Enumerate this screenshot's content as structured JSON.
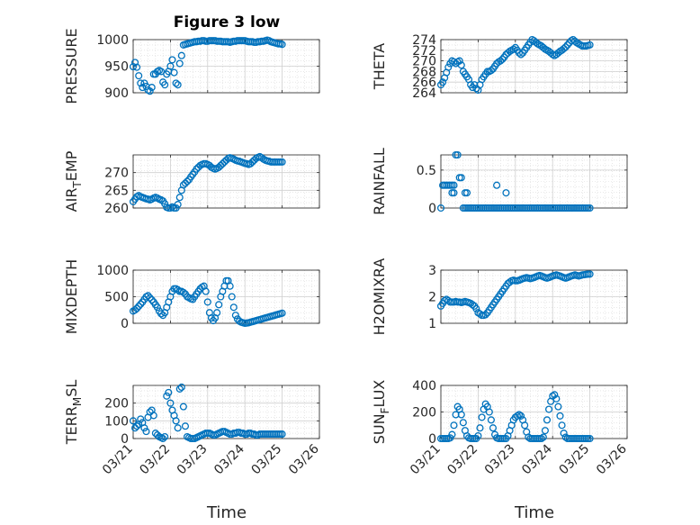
{
  "figure": {
    "title": "Figure 3 low",
    "xlabel": "Time",
    "x_ticks": [
      "03/21",
      "03/22",
      "03/23",
      "03/24",
      "03/25",
      "03/26"
    ],
    "marker_color": "#0072BD"
  },
  "chart_data": [
    {
      "type": "scatter",
      "ylabel": "PRESSURE",
      "ylim": [
        900,
        1000
      ],
      "yticks": [
        900,
        950,
        1000
      ],
      "xlim": [
        0,
        5
      ],
      "grid": true,
      "x": [
        0.0,
        0.05,
        0.1,
        0.15,
        0.2,
        0.25,
        0.3,
        0.35,
        0.4,
        0.45,
        0.5,
        0.55,
        0.6,
        0.65,
        0.7,
        0.75,
        0.8,
        0.85,
        0.9,
        0.95,
        1.0,
        1.05,
        1.1,
        1.15,
        1.2,
        1.25,
        1.3,
        1.35,
        1.4,
        1.45,
        1.5,
        1.55,
        1.6,
        1.65,
        1.7,
        1.75,
        1.8,
        1.85,
        1.9,
        1.95,
        2.0,
        2.05,
        2.1,
        2.15,
        2.2,
        2.25,
        2.3,
        2.35,
        2.4,
        2.45,
        2.5,
        2.55,
        2.6,
        2.65,
        2.7,
        2.75,
        2.8,
        2.85,
        2.9,
        2.95,
        3.0,
        3.05,
        3.1,
        3.15,
        3.2,
        3.25,
        3.3,
        3.35,
        3.4,
        3.45,
        3.5,
        3.55,
        3.6,
        3.65,
        3.7,
        3.75,
        3.8,
        3.85,
        3.9,
        3.95,
        4.0
      ],
      "y": [
        949,
        957,
        948,
        932,
        918,
        910,
        918,
        912,
        905,
        903,
        910,
        935,
        935,
        940,
        942,
        940,
        920,
        915,
        935,
        940,
        950,
        962,
        938,
        918,
        915,
        955,
        970,
        990,
        991,
        992,
        993,
        994,
        995,
        996,
        996,
        997,
        997,
        998,
        998,
        997,
        997,
        998,
        998,
        998,
        998,
        997,
        997,
        997,
        996,
        996,
        996,
        996,
        995,
        996,
        997,
        997,
        998,
        998,
        998,
        998,
        998,
        997,
        996,
        996,
        996,
        995,
        995,
        996,
        996,
        997,
        997,
        998,
        999,
        998,
        996,
        995,
        994,
        993,
        992,
        992,
        991
      ]
    },
    {
      "type": "scatter",
      "ylabel": "THETA",
      "ylim": [
        264,
        274
      ],
      "yticks": [
        264,
        266,
        268,
        270,
        272,
        274
      ],
      "xlim": [
        0,
        5
      ],
      "grid": true,
      "x": [
        0.0,
        0.05,
        0.1,
        0.15,
        0.2,
        0.25,
        0.3,
        0.35,
        0.4,
        0.45,
        0.5,
        0.55,
        0.6,
        0.65,
        0.7,
        0.75,
        0.8,
        0.85,
        0.9,
        0.95,
        1.0,
        1.05,
        1.1,
        1.15,
        1.2,
        1.25,
        1.3,
        1.35,
        1.4,
        1.45,
        1.5,
        1.55,
        1.6,
        1.65,
        1.7,
        1.75,
        1.8,
        1.85,
        1.9,
        1.95,
        2.0,
        2.05,
        2.1,
        2.15,
        2.2,
        2.25,
        2.3,
        2.35,
        2.4,
        2.45,
        2.5,
        2.55,
        2.6,
        2.65,
        2.7,
        2.75,
        2.8,
        2.85,
        2.9,
        2.95,
        3.0,
        3.05,
        3.1,
        3.15,
        3.2,
        3.25,
        3.3,
        3.35,
        3.4,
        3.45,
        3.5,
        3.55,
        3.6,
        3.65,
        3.7,
        3.75,
        3.8,
        3.85,
        3.9,
        3.95,
        4.0
      ],
      "y": [
        265.5,
        266.0,
        266.8,
        267.8,
        268.8,
        269.5,
        270.0,
        269.8,
        269.5,
        269.8,
        270.0,
        269.2,
        268.0,
        267.5,
        267.0,
        266.5,
        265.5,
        265.0,
        265.5,
        264.8,
        264.5,
        265.5,
        266.5,
        267.0,
        267.5,
        268.0,
        268.0,
        268.2,
        268.5,
        269.0,
        269.5,
        269.8,
        270.0,
        270.3,
        270.7,
        271.2,
        271.5,
        271.8,
        272.0,
        272.2,
        272.5,
        272.0,
        271.5,
        271.2,
        271.5,
        272.0,
        272.5,
        273.0,
        273.5,
        274.0,
        273.8,
        273.5,
        273.2,
        273.0,
        272.8,
        272.5,
        272.2,
        272.0,
        271.8,
        271.5,
        271.2,
        271.0,
        271.2,
        271.5,
        271.8,
        272.0,
        272.3,
        272.6,
        273.0,
        273.4,
        273.8,
        274.0,
        273.7,
        273.4,
        273.2,
        273.0,
        272.8,
        272.8,
        272.8,
        272.9,
        273.0
      ]
    },
    {
      "type": "scatter",
      "ylabel": "AIR_TEMP",
      "ylim": [
        260,
        275
      ],
      "yticks": [
        260,
        265,
        270
      ],
      "xlim": [
        0,
        5
      ],
      "grid": true,
      "x": [
        0.0,
        0.05,
        0.1,
        0.15,
        0.2,
        0.25,
        0.3,
        0.35,
        0.4,
        0.45,
        0.5,
        0.55,
        0.6,
        0.65,
        0.7,
        0.75,
        0.8,
        0.85,
        0.9,
        0.95,
        1.0,
        1.05,
        1.1,
        1.15,
        1.2,
        1.25,
        1.3,
        1.35,
        1.4,
        1.45,
        1.5,
        1.55,
        1.6,
        1.65,
        1.7,
        1.75,
        1.8,
        1.85,
        1.9,
        1.95,
        2.0,
        2.05,
        2.1,
        2.15,
        2.2,
        2.25,
        2.3,
        2.35,
        2.4,
        2.45,
        2.5,
        2.55,
        2.6,
        2.65,
        2.7,
        2.75,
        2.8,
        2.85,
        2.9,
        2.95,
        3.0,
        3.05,
        3.1,
        3.15,
        3.2,
        3.25,
        3.3,
        3.35,
        3.4,
        3.45,
        3.5,
        3.55,
        3.6,
        3.65,
        3.7,
        3.75,
        3.8,
        3.85,
        3.9,
        3.95,
        4.0
      ],
      "y": [
        261.8,
        262.5,
        263.2,
        263.5,
        263.2,
        263.0,
        262.8,
        262.6,
        262.5,
        262.3,
        262.5,
        262.8,
        263.0,
        262.8,
        262.5,
        262.3,
        262.0,
        261.2,
        260.2,
        260.0,
        260.0,
        260.3,
        260.0,
        260.0,
        261.0,
        263.0,
        265.0,
        266.5,
        267.0,
        267.5,
        268.0,
        268.8,
        269.5,
        270.2,
        271.0,
        271.5,
        272.0,
        272.3,
        272.5,
        272.5,
        272.3,
        272.0,
        271.5,
        271.2,
        271.0,
        271.2,
        271.5,
        272.0,
        272.5,
        273.0,
        273.5,
        274.0,
        274.2,
        274.0,
        273.8,
        273.5,
        273.3,
        273.2,
        273.0,
        272.8,
        272.6,
        272.5,
        272.3,
        272.5,
        273.0,
        273.5,
        274.0,
        274.3,
        274.5,
        274.2,
        273.8,
        273.5,
        273.3,
        273.2,
        273.0,
        273.0,
        273.0,
        273.0,
        273.0,
        273.0,
        273.0
      ]
    },
    {
      "type": "scatter",
      "ylabel": "RAINFALL",
      "ylim": [
        0,
        0.7
      ],
      "yticks": [
        0,
        0.5
      ],
      "xlim": [
        0,
        5
      ],
      "grid": true,
      "x": [
        0.0,
        0.05,
        0.1,
        0.15,
        0.2,
        0.25,
        0.3,
        0.35,
        0.4,
        0.45,
        0.5,
        0.55,
        0.6,
        0.65,
        0.7,
        0.75,
        0.8,
        0.85,
        0.9,
        0.95,
        1.0,
        1.05,
        1.1,
        1.15,
        1.2,
        1.25,
        1.3,
        1.35,
        1.4,
        1.45,
        1.5,
        1.55,
        1.6,
        1.65,
        1.7,
        1.75,
        1.8,
        1.85,
        1.9,
        1.95,
        2.0,
        2.05,
        2.1,
        2.15,
        2.2,
        2.25,
        2.3,
        2.35,
        2.4,
        2.45,
        2.5,
        2.55,
        2.6,
        2.65,
        2.7,
        2.75,
        2.8,
        2.85,
        2.9,
        2.95,
        3.0,
        3.05,
        3.1,
        3.15,
        3.2,
        3.25,
        3.3,
        3.35,
        3.4,
        3.45,
        3.5,
        3.55,
        3.6,
        3.65,
        3.7,
        3.75,
        3.8,
        3.85,
        3.9,
        3.95,
        4.0,
        0.3,
        0.35,
        0.65,
        0.7,
        1.5,
        1.75
      ],
      "y": [
        0,
        0.3,
        0.3,
        0.3,
        0.3,
        0.3,
        0.3,
        0.3,
        0.7,
        0.7,
        0.4,
        0.4,
        0,
        0,
        0,
        0,
        0,
        0,
        0,
        0,
        0,
        0,
        0,
        0,
        0,
        0,
        0,
        0,
        0,
        0,
        0,
        0,
        0,
        0,
        0,
        0,
        0,
        0,
        0,
        0,
        0,
        0,
        0,
        0,
        0,
        0,
        0,
        0,
        0,
        0,
        0,
        0,
        0,
        0,
        0,
        0,
        0,
        0,
        0,
        0,
        0,
        0,
        0,
        0,
        0,
        0,
        0,
        0,
        0,
        0,
        0,
        0,
        0,
        0,
        0,
        0,
        0,
        0,
        0,
        0,
        0,
        0.2,
        0.2,
        0.2,
        0.2,
        0.3,
        0.2
      ]
    },
    {
      "type": "scatter",
      "ylabel": "MIXDEPTH",
      "ylim": [
        0,
        1000
      ],
      "yticks": [
        0,
        500,
        1000
      ],
      "xlim": [
        0,
        5
      ],
      "grid": true,
      "x": [
        0.0,
        0.05,
        0.1,
        0.15,
        0.2,
        0.25,
        0.3,
        0.35,
        0.4,
        0.45,
        0.5,
        0.55,
        0.6,
        0.65,
        0.7,
        0.75,
        0.8,
        0.85,
        0.9,
        0.95,
        1.0,
        1.05,
        1.1,
        1.15,
        1.2,
        1.25,
        1.3,
        1.35,
        1.4,
        1.45,
        1.5,
        1.55,
        1.6,
        1.65,
        1.7,
        1.75,
        1.8,
        1.85,
        1.9,
        1.95,
        2.0,
        2.05,
        2.1,
        2.15,
        2.2,
        2.25,
        2.3,
        2.35,
        2.4,
        2.45,
        2.5,
        2.55,
        2.6,
        2.65,
        2.7,
        2.75,
        2.8,
        2.85,
        2.9,
        2.95,
        3.0,
        3.05,
        3.1,
        3.15,
        3.2,
        3.25,
        3.3,
        3.35,
        3.4,
        3.45,
        3.5,
        3.55,
        3.6,
        3.65,
        3.7,
        3.75,
        3.8,
        3.85,
        3.9,
        3.95,
        4.0
      ],
      "y": [
        230,
        250,
        280,
        320,
        360,
        400,
        450,
        500,
        520,
        480,
        440,
        400,
        350,
        300,
        230,
        180,
        150,
        200,
        300,
        400,
        500,
        600,
        650,
        650,
        630,
        600,
        600,
        580,
        550,
        500,
        480,
        460,
        450,
        500,
        550,
        600,
        650,
        680,
        700,
        600,
        400,
        200,
        100,
        50,
        100,
        200,
        350,
        500,
        600,
        700,
        800,
        800,
        700,
        500,
        300,
        150,
        80,
        40,
        20,
        10,
        0,
        5,
        10,
        20,
        30,
        40,
        50,
        60,
        70,
        80,
        90,
        100,
        110,
        120,
        130,
        140,
        150,
        160,
        170,
        180,
        190
      ]
    },
    {
      "type": "scatter",
      "ylabel": "H2OMIXRA",
      "ylim": [
        1,
        3
      ],
      "yticks": [
        1,
        2,
        3
      ],
      "xlim": [
        0,
        5
      ],
      "grid": true,
      "x": [
        0.0,
        0.05,
        0.1,
        0.15,
        0.2,
        0.25,
        0.3,
        0.35,
        0.4,
        0.45,
        0.5,
        0.55,
        0.6,
        0.65,
        0.7,
        0.75,
        0.8,
        0.85,
        0.9,
        0.95,
        1.0,
        1.05,
        1.1,
        1.15,
        1.2,
        1.25,
        1.3,
        1.35,
        1.4,
        1.45,
        1.5,
        1.55,
        1.6,
        1.65,
        1.7,
        1.75,
        1.8,
        1.85,
        1.9,
        1.95,
        2.0,
        2.05,
        2.1,
        2.15,
        2.2,
        2.25,
        2.3,
        2.35,
        2.4,
        2.45,
        2.5,
        2.55,
        2.6,
        2.65,
        2.7,
        2.75,
        2.8,
        2.85,
        2.9,
        2.95,
        3.0,
        3.05,
        3.1,
        3.15,
        3.2,
        3.25,
        3.3,
        3.35,
        3.4,
        3.45,
        3.5,
        3.55,
        3.6,
        3.65,
        3.7,
        3.75,
        3.8,
        3.85,
        3.9,
        3.95,
        4.0
      ],
      "y": [
        1.65,
        1.75,
        1.85,
        1.9,
        1.85,
        1.8,
        1.8,
        1.8,
        1.82,
        1.8,
        1.8,
        1.78,
        1.8,
        1.82,
        1.8,
        1.78,
        1.75,
        1.7,
        1.65,
        1.55,
        1.4,
        1.35,
        1.3,
        1.3,
        1.32,
        1.4,
        1.5,
        1.6,
        1.7,
        1.8,
        1.9,
        2.0,
        2.1,
        2.2,
        2.3,
        2.4,
        2.5,
        2.55,
        2.6,
        2.62,
        2.6,
        2.6,
        2.62,
        2.65,
        2.68,
        2.7,
        2.72,
        2.7,
        2.68,
        2.7,
        2.72,
        2.75,
        2.78,
        2.8,
        2.78,
        2.75,
        2.72,
        2.7,
        2.72,
        2.75,
        2.78,
        2.8,
        2.82,
        2.8,
        2.78,
        2.75,
        2.72,
        2.7,
        2.72,
        2.75,
        2.78,
        2.8,
        2.82,
        2.8,
        2.78,
        2.8,
        2.82,
        2.83,
        2.84,
        2.85,
        2.85
      ]
    },
    {
      "type": "scatter",
      "ylabel": "TERR_MSL",
      "ylim": [
        0,
        300
      ],
      "yticks": [
        0,
        100,
        200
      ],
      "xlim": [
        0,
        5
      ],
      "grid": true,
      "x": [
        0.0,
        0.05,
        0.1,
        0.15,
        0.2,
        0.25,
        0.3,
        0.35,
        0.4,
        0.45,
        0.5,
        0.55,
        0.6,
        0.65,
        0.7,
        0.75,
        0.8,
        0.85,
        0.9,
        0.95,
        1.0,
        1.05,
        1.1,
        1.15,
        1.2,
        1.25,
        1.3,
        1.35,
        1.4,
        1.45,
        1.5,
        1.55,
        1.6,
        1.65,
        1.7,
        1.75,
        1.8,
        1.85,
        1.9,
        1.95,
        2.0,
        2.05,
        2.1,
        2.15,
        2.2,
        2.25,
        2.3,
        2.35,
        2.4,
        2.45,
        2.5,
        2.55,
        2.6,
        2.65,
        2.7,
        2.75,
        2.8,
        2.85,
        2.9,
        2.95,
        3.0,
        3.05,
        3.1,
        3.15,
        3.2,
        3.25,
        3.3,
        3.35,
        3.4,
        3.45,
        3.5,
        3.55,
        3.6,
        3.65,
        3.7,
        3.75,
        3.8,
        3.85,
        3.9,
        3.95,
        4.0
      ],
      "y": [
        100,
        60,
        70,
        80,
        110,
        90,
        60,
        40,
        120,
        150,
        160,
        130,
        30,
        20,
        10,
        5,
        0,
        10,
        240,
        260,
        200,
        160,
        130,
        100,
        60,
        280,
        290,
        180,
        70,
        10,
        5,
        0,
        0,
        0,
        5,
        10,
        15,
        20,
        25,
        30,
        30,
        30,
        25,
        20,
        20,
        25,
        30,
        35,
        40,
        40,
        35,
        30,
        25,
        25,
        30,
        30,
        35,
        35,
        30,
        30,
        25,
        25,
        30,
        30,
        25,
        25,
        20,
        20,
        25,
        25,
        25,
        25,
        25,
        25,
        25,
        25,
        25,
        25,
        25,
        25,
        25
      ]
    },
    {
      "type": "scatter",
      "ylabel": "SUN_FLUX",
      "ylim": [
        0,
        400
      ],
      "yticks": [
        0,
        200,
        400
      ],
      "xlim": [
        0,
        5
      ],
      "grid": true,
      "x": [
        0.0,
        0.05,
        0.1,
        0.15,
        0.2,
        0.25,
        0.3,
        0.35,
        0.4,
        0.45,
        0.5,
        0.55,
        0.6,
        0.65,
        0.7,
        0.75,
        0.8,
        0.85,
        0.9,
        0.95,
        1.0,
        1.05,
        1.1,
        1.15,
        1.2,
        1.25,
        1.3,
        1.35,
        1.4,
        1.45,
        1.5,
        1.55,
        1.6,
        1.65,
        1.7,
        1.75,
        1.8,
        1.85,
        1.9,
        1.95,
        2.0,
        2.05,
        2.1,
        2.15,
        2.2,
        2.25,
        2.3,
        2.35,
        2.4,
        2.45,
        2.5,
        2.55,
        2.6,
        2.65,
        2.7,
        2.75,
        2.8,
        2.85,
        2.9,
        2.95,
        3.0,
        3.05,
        3.1,
        3.15,
        3.2,
        3.25,
        3.3,
        3.35,
        3.4,
        3.45,
        3.5,
        3.55,
        3.6,
        3.65,
        3.7,
        3.75,
        3.8,
        3.85,
        3.9,
        3.95,
        4.0
      ],
      "y": [
        0,
        0,
        0,
        0,
        0,
        5,
        30,
        100,
        180,
        240,
        220,
        180,
        120,
        60,
        20,
        5,
        0,
        0,
        0,
        0,
        20,
        80,
        160,
        220,
        260,
        240,
        200,
        140,
        80,
        30,
        5,
        0,
        0,
        0,
        0,
        0,
        20,
        60,
        100,
        140,
        160,
        170,
        180,
        170,
        140,
        100,
        50,
        10,
        0,
        0,
        0,
        0,
        0,
        0,
        0,
        10,
        60,
        140,
        220,
        280,
        320,
        330,
        300,
        240,
        170,
        100,
        40,
        10,
        0,
        0,
        0,
        0,
        0,
        0,
        0,
        0,
        0,
        0,
        0,
        0,
        0
      ]
    }
  ]
}
